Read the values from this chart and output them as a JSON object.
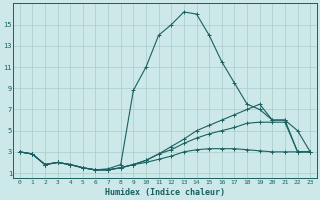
{
  "xlabel": "Humidex (Indice chaleur)",
  "bg_color": "#cce8e8",
  "grid_color": "#aacccc",
  "line_color": "#1a6060",
  "xlim": [
    -0.5,
    23.5
  ],
  "ylim": [
    0.5,
    17
  ],
  "xticks": [
    0,
    1,
    2,
    3,
    4,
    5,
    6,
    7,
    8,
    9,
    10,
    11,
    12,
    13,
    14,
    15,
    16,
    17,
    18,
    19,
    20,
    21,
    22,
    23
  ],
  "yticks": [
    1,
    3,
    5,
    7,
    9,
    11,
    13,
    15
  ],
  "series": [
    {
      "x": [
        0,
        1,
        2,
        3,
        4,
        5,
        6,
        7,
        8,
        9,
        10,
        11,
        12,
        13,
        14,
        15,
        16,
        17,
        18,
        19,
        20,
        21,
        22,
        23
      ],
      "y": [
        3.0,
        2.8,
        1.8,
        2.0,
        1.8,
        1.5,
        1.3,
        1.4,
        1.8,
        8.8,
        11.0,
        14.0,
        15.0,
        16.2,
        16.0,
        14.0,
        11.5,
        9.5,
        7.5,
        7.0,
        6.0,
        6.0,
        5.0,
        3.0
      ]
    },
    {
      "x": [
        0,
        1,
        2,
        3,
        4,
        5,
        6,
        7,
        8,
        9,
        10,
        11,
        12,
        13,
        14,
        15,
        16,
        17,
        18,
        19,
        20,
        21,
        22,
        23
      ],
      "y": [
        3.0,
        2.8,
        1.8,
        2.0,
        1.8,
        1.5,
        1.3,
        1.3,
        1.5,
        1.8,
        2.2,
        2.8,
        3.5,
        4.2,
        5.0,
        5.5,
        6.0,
        6.5,
        7.0,
        7.5,
        6.0,
        6.0,
        3.0,
        3.0
      ]
    },
    {
      "x": [
        0,
        1,
        2,
        3,
        4,
        5,
        6,
        7,
        8,
        9,
        10,
        11,
        12,
        13,
        14,
        15,
        16,
        17,
        18,
        19,
        20,
        21,
        22,
        23
      ],
      "y": [
        3.0,
        2.8,
        1.8,
        2.0,
        1.8,
        1.5,
        1.3,
        1.3,
        1.5,
        1.8,
        2.2,
        2.8,
        3.2,
        3.8,
        4.3,
        4.7,
        5.0,
        5.3,
        5.7,
        5.8,
        5.8,
        5.8,
        3.0,
        3.0
      ]
    },
    {
      "x": [
        0,
        1,
        2,
        3,
        4,
        5,
        6,
        7,
        8,
        9,
        10,
        11,
        12,
        13,
        14,
        15,
        16,
        17,
        18,
        19,
        20,
        21,
        22,
        23
      ],
      "y": [
        3.0,
        2.8,
        1.8,
        2.0,
        1.8,
        1.5,
        1.3,
        1.3,
        1.5,
        1.8,
        2.0,
        2.3,
        2.6,
        3.0,
        3.2,
        3.3,
        3.3,
        3.3,
        3.2,
        3.1,
        3.0,
        3.0,
        3.0,
        3.0
      ]
    }
  ]
}
